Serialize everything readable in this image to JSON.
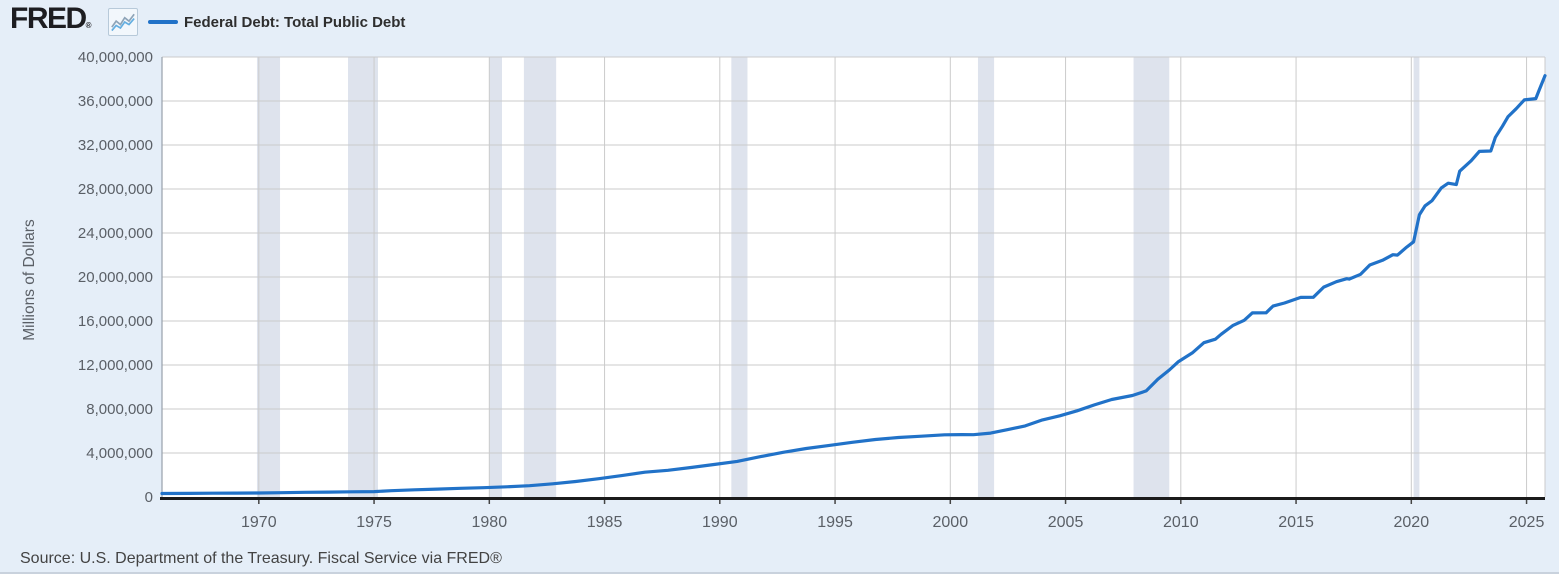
{
  "header": {
    "logo_text": "FRED",
    "logo_registered": "®",
    "legend_label": "Federal Debt: Total Public Debt"
  },
  "footer": {
    "source_text": "Source: U.S. Department of the Treasury. Fiscal Service via FRED®"
  },
  "colors": {
    "page_background": "#e5eef8",
    "plot_background": "#ffffff",
    "series_line": "#2172c8",
    "recession_band": "#dee3ed",
    "gridline": "#cbcbcb",
    "axis_line": "#1b1b1b",
    "left_spine": "#98a0ab",
    "tick_text": "#5a5f66"
  },
  "chart_data": {
    "type": "line",
    "title": "Federal Debt: Total Public Debt",
    "xlabel": "",
    "ylabel": "Millions of Dollars",
    "xlim": [
      1965.8,
      2025.8
    ],
    "ylim": [
      0,
      40000000
    ],
    "grid": true,
    "legend_position": "top-left",
    "x_ticks": [
      1970,
      1975,
      1980,
      1985,
      1990,
      1995,
      2000,
      2005,
      2010,
      2015,
      2020,
      2025
    ],
    "y_ticks": [
      0,
      4000000,
      8000000,
      12000000,
      16000000,
      20000000,
      24000000,
      28000000,
      32000000,
      36000000,
      40000000
    ],
    "recession_bands": [
      [
        1969.92,
        1970.92
      ],
      [
        1973.87,
        1975.17
      ],
      [
        1980.0,
        1980.55
      ],
      [
        1981.5,
        1982.9
      ],
      [
        1990.5,
        1991.2
      ],
      [
        2001.2,
        2001.9
      ],
      [
        2007.95,
        2009.5
      ],
      [
        2020.1,
        2020.35
      ]
    ],
    "series": [
      {
        "name": "Federal Debt: Total Public Debt",
        "color": "#2172c8",
        "units": "Millions of Dollars",
        "points": [
          [
            1965.8,
            317000
          ],
          [
            1967,
            326000
          ],
          [
            1968,
            344000
          ],
          [
            1969,
            358000
          ],
          [
            1970,
            368000
          ],
          [
            1971,
            389000
          ],
          [
            1972,
            424000
          ],
          [
            1973,
            449000
          ],
          [
            1974,
            469000
          ],
          [
            1975,
            492000
          ],
          [
            1975.75,
            577000
          ],
          [
            1976.75,
            654000
          ],
          [
            1977.75,
            719000
          ],
          [
            1978.75,
            789000
          ],
          [
            1979.75,
            845000
          ],
          [
            1980.75,
            930000
          ],
          [
            1981.75,
            1029000
          ],
          [
            1982.75,
            1197000
          ],
          [
            1983.75,
            1411000
          ],
          [
            1984.75,
            1663000
          ],
          [
            1985.75,
            1946000
          ],
          [
            1986.75,
            2251000
          ],
          [
            1987.75,
            2431000
          ],
          [
            1988.75,
            2684000
          ],
          [
            1989.75,
            2953000
          ],
          [
            1990.75,
            3233000
          ],
          [
            1991.75,
            3665000
          ],
          [
            1992.75,
            4065000
          ],
          [
            1993.75,
            4411000
          ],
          [
            1994.75,
            4693000
          ],
          [
            1995.75,
            4974000
          ],
          [
            1996.75,
            5225000
          ],
          [
            1997.75,
            5413000
          ],
          [
            1998.75,
            5526000
          ],
          [
            1999.75,
            5656000
          ],
          [
            2000.5,
            5674000
          ],
          [
            2001,
            5662000
          ],
          [
            2001.75,
            5807000
          ],
          [
            2002.5,
            6126000
          ],
          [
            2003.25,
            6460000
          ],
          [
            2004,
            7009000
          ],
          [
            2004.75,
            7379000
          ],
          [
            2005.5,
            7837000
          ],
          [
            2006.25,
            8371000
          ],
          [
            2007,
            8867000
          ],
          [
            2007.9,
            9229000
          ],
          [
            2008.5,
            9650000
          ],
          [
            2009,
            10700000
          ],
          [
            2009.5,
            11545000
          ],
          [
            2009.9,
            12311000
          ],
          [
            2010.5,
            13100000
          ],
          [
            2011,
            14025000
          ],
          [
            2011.5,
            14343000
          ],
          [
            2011.75,
            14790000
          ],
          [
            2012.25,
            15582000
          ],
          [
            2012.75,
            16066000
          ],
          [
            2013.1,
            16738000
          ],
          [
            2013.7,
            16747000
          ],
          [
            2014,
            17352000
          ],
          [
            2014.5,
            17632000
          ],
          [
            2015.2,
            18141000
          ],
          [
            2015.75,
            18151000
          ],
          [
            2016.2,
            19082000
          ],
          [
            2016.75,
            19573000
          ],
          [
            2017.2,
            19846000
          ],
          [
            2017.3,
            19808000
          ],
          [
            2017.8,
            20245000
          ],
          [
            2018.2,
            21090000
          ],
          [
            2018.75,
            21516000
          ],
          [
            2019.2,
            22023000
          ],
          [
            2019.4,
            21987000
          ],
          [
            2019.8,
            22719000
          ],
          [
            2020.1,
            23200000
          ],
          [
            2020.35,
            25662000
          ],
          [
            2020.6,
            26477000
          ],
          [
            2020.9,
            26945000
          ],
          [
            2021.3,
            28100000
          ],
          [
            2021.6,
            28529000
          ],
          [
            2021.95,
            28401000
          ],
          [
            2022.1,
            29617000
          ],
          [
            2022.6,
            30569000
          ],
          [
            2022.95,
            31420000
          ],
          [
            2023.45,
            31458000
          ],
          [
            2023.65,
            32700000
          ],
          [
            2023.95,
            33700000
          ],
          [
            2024.2,
            34580000
          ],
          [
            2024.55,
            35300000
          ],
          [
            2024.9,
            36100000
          ],
          [
            2025.4,
            36214000
          ],
          [
            2025.55,
            37000000
          ],
          [
            2025.8,
            38300000
          ]
        ]
      }
    ]
  }
}
